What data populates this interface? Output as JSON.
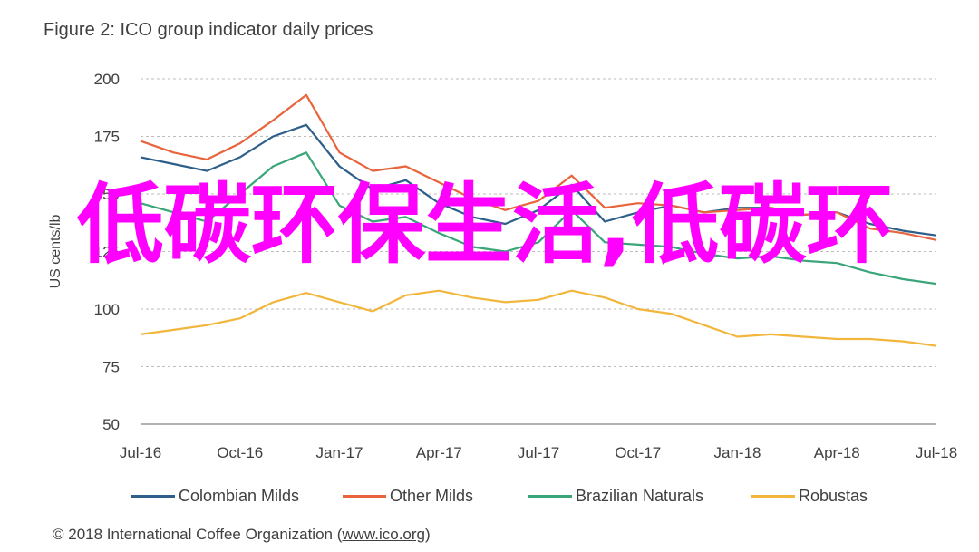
{
  "figure": {
    "title": "Figure 2: ICO group indicator daily prices",
    "source": {
      "prefix": "© 2018 International Coffee Organization (",
      "link": "www.ico.org",
      "suffix": ")"
    },
    "overlay_text": "低碳环保生活,低碳环"
  },
  "chart_data": {
    "type": "line",
    "title": "Figure 2: ICO group indicator daily prices",
    "xlabel": "",
    "ylabel": "US cents/lb",
    "x": [
      "Jul-16",
      "Aug-16",
      "Sep-16",
      "Oct-16",
      "Nov-16",
      "Dec-16",
      "Jan-17",
      "Feb-17",
      "Mar-17",
      "Apr-17",
      "May-17",
      "Jun-17",
      "Jul-17",
      "Aug-17",
      "Sep-17",
      "Oct-17",
      "Nov-17",
      "Dec-17",
      "Jan-18",
      "Feb-18",
      "Mar-18",
      "Apr-18",
      "May-18",
      "Jun-18",
      "Jul-18"
    ],
    "x_ticks": [
      "Jul-16",
      "Oct-16",
      "Jan-17",
      "Apr-17",
      "Jul-17",
      "Oct-17",
      "Jan-18",
      "Apr-18",
      "Jul-18"
    ],
    "ylim": [
      50,
      200
    ],
    "y_ticks": [
      50,
      75,
      100,
      125,
      150,
      175,
      200
    ],
    "grid": "horizontal dashed",
    "legend_position": "bottom",
    "series": [
      {
        "name": "Colombian Milds",
        "color": "#2e5f8a",
        "values": [
          166,
          163,
          160,
          166,
          175,
          180,
          162,
          152,
          156,
          146,
          140,
          137,
          143,
          154,
          138,
          142,
          145,
          142,
          144,
          144,
          141,
          142,
          137,
          134,
          132
        ]
      },
      {
        "name": "Other Milds",
        "color": "#e8643c",
        "values": [
          173,
          168,
          165,
          172,
          182,
          193,
          168,
          160,
          162,
          155,
          148,
          143,
          147,
          158,
          144,
          146,
          145,
          142,
          143,
          144,
          141,
          142,
          135,
          133,
          130
        ]
      },
      {
        "name": "Brazilian Naturals",
        "color": "#3aa579",
        "values": [
          146,
          142,
          138,
          150,
          162,
          168,
          145,
          138,
          140,
          133,
          127,
          125,
          129,
          143,
          129,
          128,
          127,
          124,
          122,
          123,
          121,
          120,
          116,
          113,
          111
        ]
      },
      {
        "name": "Robustas",
        "color": "#f2b63c",
        "values": [
          89,
          91,
          93,
          96,
          103,
          107,
          103,
          99,
          106,
          108,
          105,
          103,
          104,
          108,
          105,
          100,
          98,
          93,
          88,
          89,
          88,
          87,
          87,
          86,
          84
        ]
      }
    ]
  }
}
